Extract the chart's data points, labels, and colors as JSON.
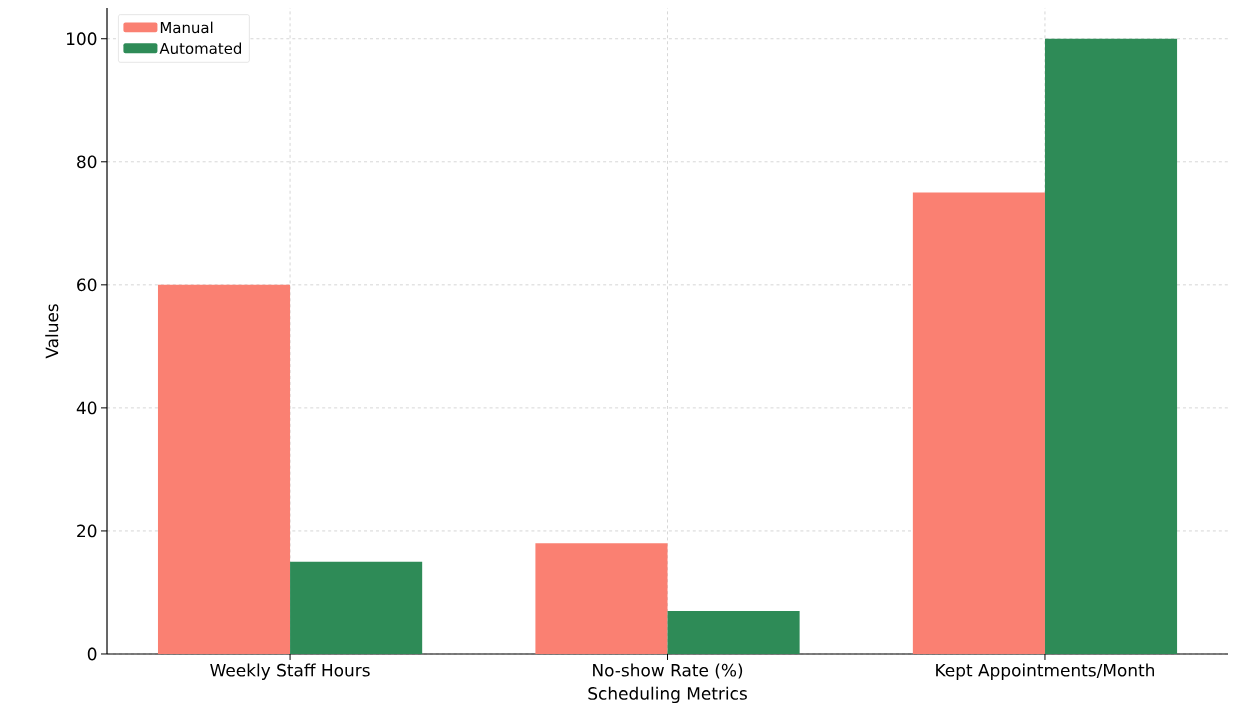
{
  "chart_data": {
    "type": "bar",
    "xlabel": "Scheduling Metrics",
    "ylabel": "Values",
    "categories": [
      "Weekly Staff Hours",
      "No-show Rate (%)",
      "Kept Appointments/Month"
    ],
    "series": [
      {
        "name": "Manual",
        "color": "#fa8072",
        "values": [
          60,
          18,
          75
        ]
      },
      {
        "name": "Automated",
        "color": "#2e8b57",
        "values": [
          15,
          7,
          100
        ]
      }
    ],
    "ylim": [
      0,
      105
    ],
    "yticks": [
      0,
      20,
      40,
      60,
      80,
      100
    ],
    "grid": true,
    "legend": "top left"
  }
}
